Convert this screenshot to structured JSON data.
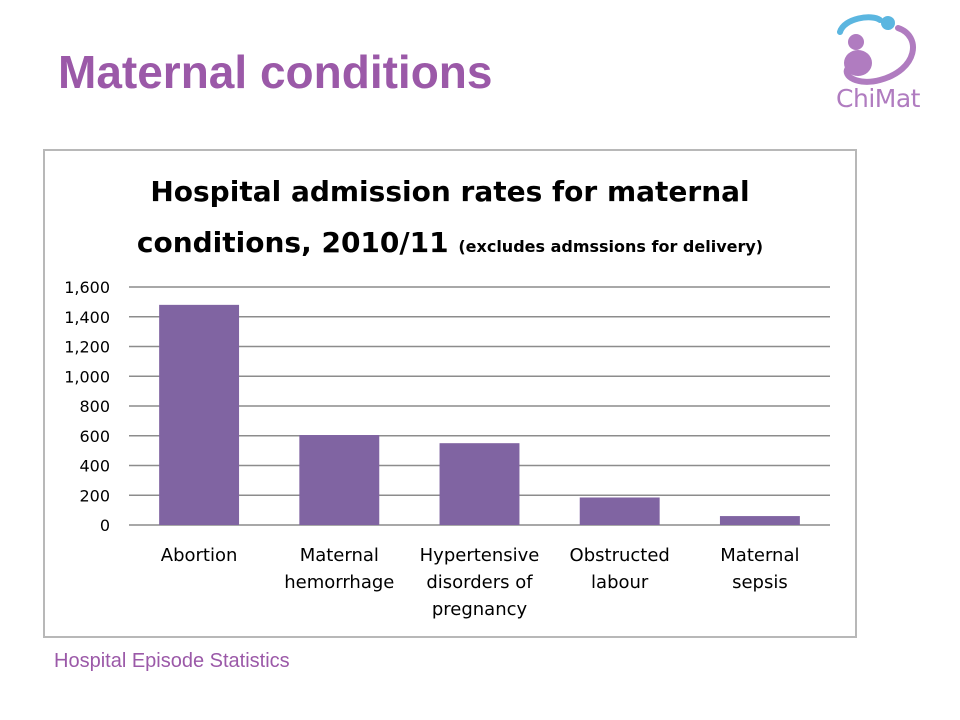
{
  "slide": {
    "title": "Maternal conditions",
    "source": "Hospital Episode Statistics",
    "logo_text": "ChiMat"
  },
  "colors": {
    "accent": "#9b59a8",
    "bar": "#8064a2",
    "gridline": "#8c8c8c",
    "frame": "#b8b8b8",
    "logo_blue": "#5bb6e0",
    "logo_purple": "#b07cc0"
  },
  "icons": {
    "logo": "chimat-logo-icon"
  },
  "chart_data": {
    "type": "bar",
    "title_line1": "Hospital admission rates for maternal",
    "title_line2": "conditions, 2010/11",
    "title_note": "(excludes admssions for delivery)",
    "categories": [
      [
        "Abortion"
      ],
      [
        "Maternal",
        "hemorrhage"
      ],
      [
        "Hypertensive",
        "disorders of",
        "pregnancy"
      ],
      [
        "Obstructed",
        "labour"
      ],
      [
        "Maternal",
        "sepsis"
      ]
    ],
    "values": [
      1480,
      605,
      550,
      185,
      60
    ],
    "ylim": [
      0,
      1600
    ],
    "yticks": [
      0,
      200,
      400,
      600,
      800,
      1000,
      1200,
      1400,
      1600
    ],
    "ytick_labels": [
      "0",
      "200",
      "400",
      "600",
      "800",
      "1,000",
      "1,200",
      "1,400",
      "1,600"
    ],
    "grid": true,
    "legend": "none"
  }
}
